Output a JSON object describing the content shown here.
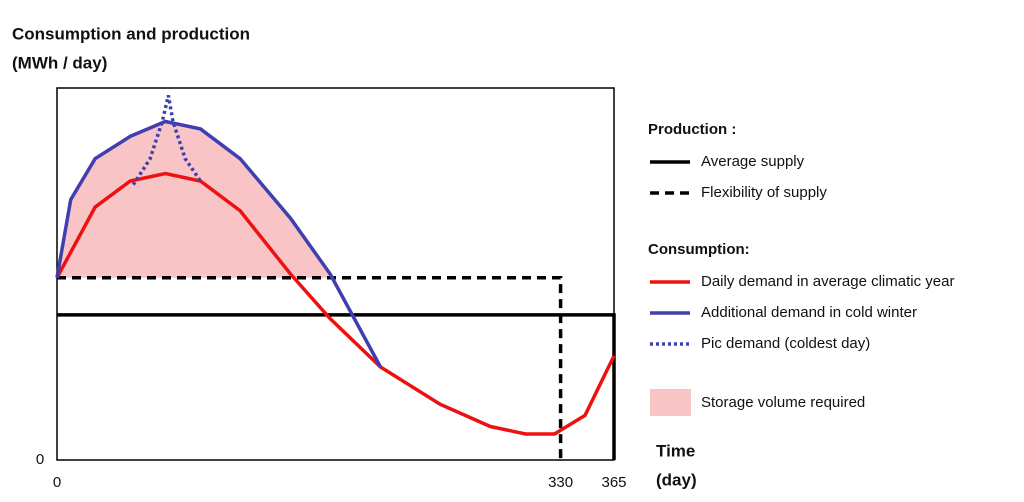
{
  "chart_data": {
    "type": "line",
    "title": "Consumption and production",
    "y_label": "(MWh / day)",
    "x_label": "Time",
    "x_unit": "(day)",
    "xlim": [
      0,
      365
    ],
    "xticks": [
      0,
      330,
      365
    ],
    "ylim": [
      0,
      100
    ],
    "yticks": [
      0
    ],
    "series_groups": [
      {
        "title": "Production :",
        "series": [
          {
            "name": "Average supply",
            "color": "#000000",
            "dash": "solid",
            "x": [
              0,
              365,
              365
            ],
            "values": [
              39,
              39,
              0
            ]
          },
          {
            "name": "Flexibility of supply",
            "color": "#000000",
            "dash": "dashed",
            "x": [
              0,
              330,
              330
            ],
            "values": [
              49,
              49,
              0
            ]
          }
        ]
      },
      {
        "title": "Consumption:",
        "series": [
          {
            "name": "Daily demand in average climatic year",
            "color": "#ee1111",
            "dash": "solid",
            "x": [
              0,
              25,
              48,
              71,
              94,
              120,
              153,
              179,
              212,
              251,
              284,
              307,
              326,
              346,
              365
            ],
            "values": [
              49,
              68,
              75,
              77,
              75,
              67,
              50,
              38,
              25,
              15,
              9,
              7,
              7,
              12,
              28
            ]
          },
          {
            "name": "Additional demand in cold winter",
            "color": "#3f3fb0",
            "dash": "solid",
            "x": [
              0,
              9,
              25,
              48,
              71,
              94,
              120,
              153,
              179,
              212
            ],
            "values": [
              49,
              70,
              81,
              87,
              91,
              89,
              81,
              65,
              50,
              25
            ]
          },
          {
            "name": "Pic demand (coldest day)",
            "color": "#3f3fb0",
            "dash": "dotted",
            "x": [
              50,
              61,
              69,
              73,
              76,
              84,
              94
            ],
            "values": [
              74,
              81,
              91,
              98,
              91,
              81,
              75
            ]
          }
        ]
      }
    ],
    "area": {
      "name": "Storage volume required",
      "color": "#f9c4c6"
    }
  }
}
